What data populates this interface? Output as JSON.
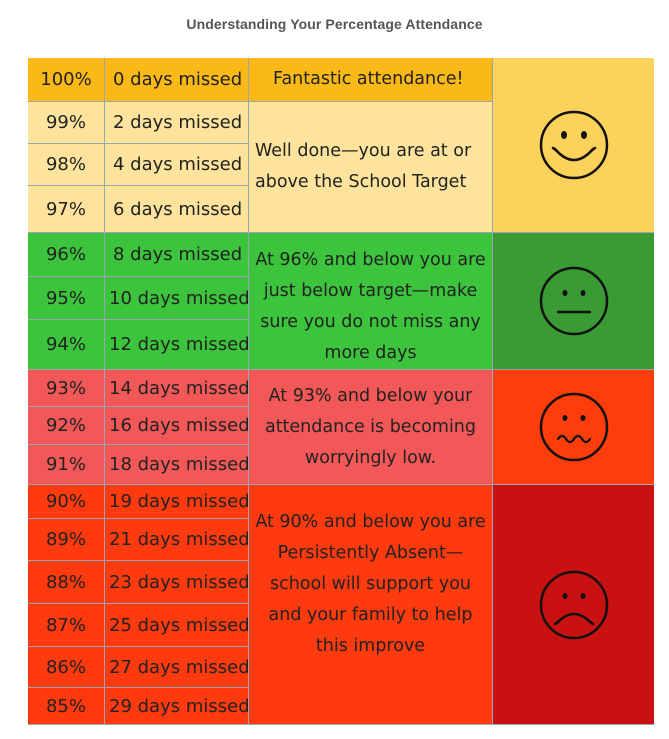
{
  "title": "Understanding Your Percentage Attendance",
  "rows": [
    {
      "pct": "100%",
      "days": "0 days missed"
    },
    {
      "pct": "99%",
      "days": "2 days missed"
    },
    {
      "pct": "98%",
      "days": "4 days missed"
    },
    {
      "pct": "97%",
      "days": "6 days missed"
    },
    {
      "pct": "96%",
      "days": "8 days missed"
    },
    {
      "pct": "95%",
      "days": "10 days missed"
    },
    {
      "pct": "94%",
      "days": "12 days missed"
    },
    {
      "pct": "93%",
      "days": "14 days missed"
    },
    {
      "pct": "92%",
      "days": "16 days missed"
    },
    {
      "pct": "91%",
      "days": "18 days missed"
    },
    {
      "pct": "90%",
      "days": "19 days missed"
    },
    {
      "pct": "89%",
      "days": "21 days missed"
    },
    {
      "pct": "88%",
      "days": "23 days missed"
    },
    {
      "pct": "87%",
      "days": "25 days missed"
    },
    {
      "pct": "86%",
      "days": "27 days missed"
    },
    {
      "pct": "85%",
      "days": "29 days missed"
    }
  ],
  "messages": {
    "fantastic": "Fantastic attendance!",
    "well_done": "Well done—you are at or above the School Target",
    "below_target": "At 96% and below you are just below target—make sure you do not miss any more days",
    "worrying": "At 93% and below your attendance is becoming worryingly low.",
    "persistent": "At 90% and below you are Persistently Absent—school will support you and your family to help this improve"
  },
  "faces": {
    "happy": "smiley-happy-icon",
    "neutral": "smiley-neutral-icon",
    "worried": "smiley-worried-icon",
    "sad": "smiley-sad-icon"
  },
  "colors": {
    "fantastic_band": "#fbb917",
    "good_band": "#fde39b",
    "green_band": "#3cc43c",
    "pink_band": "#f25858",
    "red_band": "#ff3a0f",
    "face_happy_bg": "#fdd25b",
    "face_neutral_bg": "#3a9b35",
    "face_worried_bg": "#ff3d0a",
    "face_sad_bg": "#c91111"
  }
}
